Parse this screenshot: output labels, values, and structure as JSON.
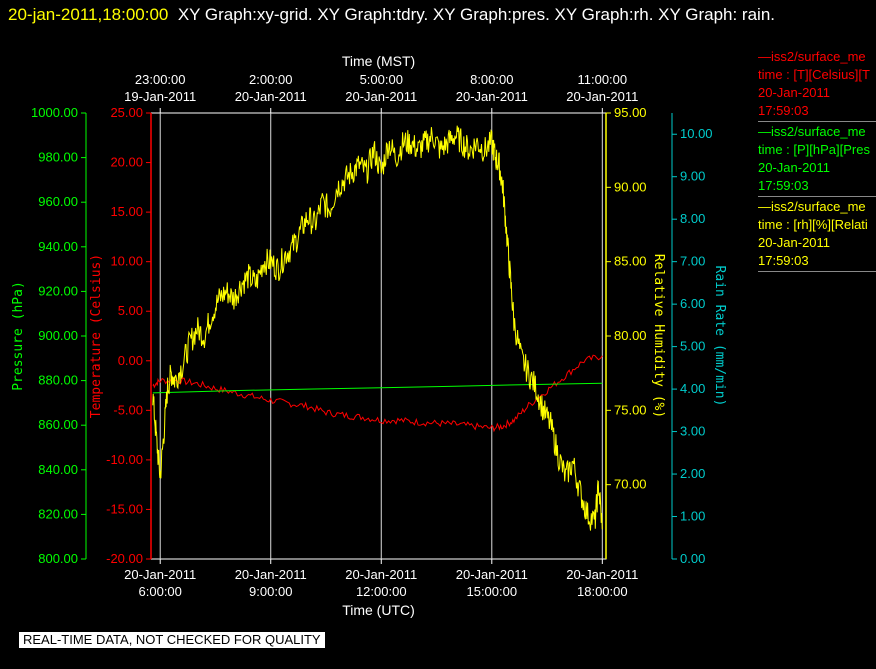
{
  "header": {
    "timestamp": "20-jan-2011,18:00:00",
    "title_text": "XY Graph:xy-grid.  XY Graph:tdry.  XY Graph:pres.  XY Graph:rh.  XY Graph: rain."
  },
  "legend": [
    {
      "line1": "—iss2/surface_me",
      "line2": "time : [T][Celsius][T",
      "line3": "20-Jan-2011",
      "line4": "17:59:03",
      "color": "#ff0000"
    },
    {
      "line1": "—iss2/surface_me",
      "line2": "time : [P][hPa][Pres",
      "line3": "20-Jan-2011",
      "line4": "17:59:03",
      "color": "#00ff00"
    },
    {
      "line1": "—iss2/surface_me",
      "line2": "time : [rh][%][Relati",
      "line3": "20-Jan-2011",
      "line4": "17:59:03",
      "color": "#ffff00"
    }
  ],
  "disclaimer": "REAL-TIME DATA, NOT CHECKED FOR QUALITY",
  "chart_data": {
    "type": "line",
    "xlabel_top": "Time (MST)",
    "xlabel_bottom": "Time (UTC)",
    "x_range_hours_utc": [
      5.75,
      18.1
    ],
    "top_ticks": [
      {
        "h": 6,
        "time": "23:00:00",
        "date": "19-Jan-2011"
      },
      {
        "h": 9,
        "time": "2:00:00",
        "date": "20-Jan-2011"
      },
      {
        "h": 12,
        "time": "5:00:00",
        "date": "20-Jan-2011"
      },
      {
        "h": 15,
        "time": "8:00:00",
        "date": "20-Jan-2011"
      },
      {
        "h": 18,
        "time": "11:00:00",
        "date": "20-Jan-2011"
      }
    ],
    "bottom_ticks": [
      {
        "h": 6,
        "date": "20-Jan-2011",
        "time": "6:00:00"
      },
      {
        "h": 9,
        "date": "20-Jan-2011",
        "time": "9:00:00"
      },
      {
        "h": 12,
        "date": "20-Jan-2011",
        "time": "12:00:00"
      },
      {
        "h": 15,
        "date": "20-Jan-2011",
        "time": "15:00:00"
      },
      {
        "h": 18,
        "date": "20-Jan-2011",
        "time": "18:00:00"
      }
    ],
    "axes": {
      "pressure": {
        "label": "Pressure (hPa)",
        "color": "#00ff00",
        "range": [
          800,
          1000
        ],
        "ticks": [
          "1000.00",
          "980.00",
          "960.00",
          "940.00",
          "920.00",
          "900.00",
          "880.00",
          "860.00",
          "840.00",
          "820.00",
          "800.00"
        ]
      },
      "temperature": {
        "label": "Temperature (Celsius)",
        "color": "#ff0000",
        "range": [
          -20,
          25
        ],
        "ticks": [
          "25.00",
          "20.00",
          "15.00",
          "10.00",
          "5.00",
          "0.00",
          "-5.00",
          "-10.00",
          "-15.00",
          "-20.00"
        ]
      },
      "rh": {
        "label": "Relative Humidity (%)",
        "color": "#ffff00",
        "range": [
          65,
          95
        ],
        "ticks": [
          "95.00",
          "90.00",
          "85.00",
          "80.00",
          "75.00",
          "70.00"
        ]
      },
      "rain": {
        "label": "Rain Rate (mm/min)",
        "color": "#00cccc",
        "range": [
          0,
          10.5
        ],
        "ticks": [
          "10.00",
          "9.00",
          "8.00",
          "7.00",
          "6.00",
          "5.00",
          "4.00",
          "3.00",
          "2.00",
          "1.00",
          "0.00"
        ]
      }
    },
    "series": [
      {
        "name": "Temperature",
        "axis": "temperature",
        "color": "#ff0000",
        "x": [
          5.8,
          6.0,
          6.5,
          7.0,
          7.5,
          8.0,
          8.5,
          9.0,
          9.5,
          10.0,
          10.5,
          11.0,
          11.5,
          12.0,
          12.5,
          13.0,
          13.5,
          14.0,
          14.5,
          15.0,
          15.3,
          15.6,
          16.0,
          16.5,
          17.0,
          17.5,
          18.0
        ],
        "y": [
          -2.5,
          -2.0,
          -2.0,
          -2.3,
          -2.8,
          -3.2,
          -3.6,
          -4.0,
          -4.3,
          -4.6,
          -5.2,
          -5.5,
          -5.7,
          -6.0,
          -6.0,
          -6.2,
          -6.3,
          -6.4,
          -6.6,
          -6.8,
          -6.6,
          -6.0,
          -4.5,
          -3.0,
          -1.5,
          0.0,
          0.5
        ]
      },
      {
        "name": "Pressure",
        "axis": "pressure",
        "color": "#00ff00",
        "x": [
          5.8,
          8.0,
          10.0,
          12.0,
          14.0,
          16.0,
          18.0
        ],
        "y": [
          874.5,
          875.5,
          876.2,
          876.8,
          877.5,
          878.2,
          878.8
        ]
      },
      {
        "name": "Relative Humidity",
        "axis": "rh",
        "color": "#ffff00",
        "x": [
          5.8,
          5.9,
          6.0,
          6.1,
          6.2,
          6.3,
          6.4,
          6.6,
          6.8,
          7.0,
          7.2,
          7.4,
          7.6,
          7.8,
          8.0,
          8.2,
          8.4,
          8.6,
          8.8,
          9.0,
          9.2,
          9.4,
          9.6,
          9.8,
          10.0,
          10.2,
          10.4,
          10.6,
          10.8,
          11.0,
          11.2,
          11.4,
          11.6,
          11.8,
          12.0,
          12.2,
          12.4,
          12.6,
          12.8,
          13.0,
          13.2,
          13.4,
          13.6,
          13.8,
          14.0,
          14.2,
          14.4,
          14.6,
          14.8,
          15.0,
          15.1,
          15.2,
          15.3,
          15.4,
          15.5,
          15.6,
          15.8,
          16.0,
          16.2,
          16.4,
          16.6,
          16.8,
          17.0,
          17.2,
          17.4,
          17.6,
          17.8,
          17.9,
          18.0
        ],
        "y": [
          76.0,
          73.0,
          70.5,
          73.5,
          76.5,
          77.5,
          77.0,
          78.0,
          79.5,
          80.5,
          80.0,
          81.5,
          82.5,
          83.0,
          82.5,
          83.5,
          84.0,
          83.5,
          85.0,
          85.0,
          84.5,
          85.5,
          86.0,
          87.0,
          88.0,
          87.5,
          89.0,
          88.5,
          90.0,
          90.5,
          91.0,
          91.5,
          91.0,
          92.5,
          91.0,
          93.0,
          92.0,
          93.0,
          93.0,
          92.5,
          93.0,
          93.5,
          92.5,
          93.0,
          93.5,
          93.0,
          92.5,
          93.0,
          92.5,
          93.0,
          92.0,
          91.5,
          90.0,
          87.0,
          84.0,
          81.0,
          78.5,
          77.5,
          76.5,
          75.0,
          74.0,
          72.0,
          70.5,
          71.5,
          69.5,
          68.0,
          67.5,
          70.0,
          67.0
        ]
      },
      {
        "name": "Rain Rate",
        "axis": "rain",
        "color": "#00cccc",
        "x": [],
        "y": []
      }
    ],
    "grid": true
  }
}
